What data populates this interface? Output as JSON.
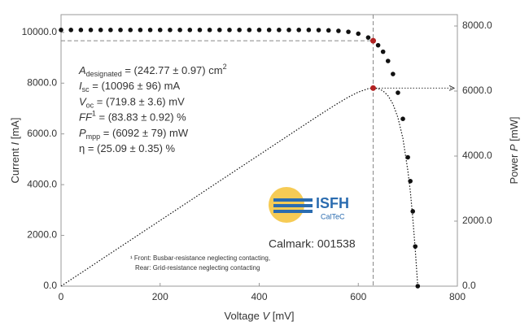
{
  "chart_data": {
    "type": "iv",
    "x": [
      0,
      20,
      40,
      60,
      80,
      100,
      120,
      140,
      160,
      180,
      200,
      220,
      240,
      260,
      280,
      300,
      320,
      340,
      360,
      380,
      400,
      420,
      440,
      460,
      480,
      500,
      520,
      540,
      560,
      580,
      600,
      620,
      630,
      640,
      650,
      660,
      670,
      680,
      690,
      700,
      705,
      710,
      715,
      720
    ],
    "series": [
      {
        "color": "#111111",
        "values": [
          10096,
          10096,
          10096,
          10096,
          10096,
          10096,
          10096,
          10096,
          10096,
          10096,
          10096,
          10096,
          10096,
          10096,
          10096,
          10096,
          10096,
          10096,
          10096,
          10096,
          10096,
          10096,
          10096,
          10096,
          10096,
          10096,
          10090,
          10080,
          10060,
          10023,
          9949,
          9797,
          9670,
          9493,
          9238,
          8874,
          8360,
          7623,
          6593,
          5078,
          4140,
          2948,
          1565,
          0
        ]
      },
      {
        "color": "#111111",
        "axis": "y2",
        "values": [
          0,
          202,
          404,
          606,
          808,
          1010,
          1212,
          1413,
          1615,
          1817,
          2019,
          2221,
          2423,
          2625,
          2827,
          3029,
          3231,
          3433,
          3635,
          3836,
          4038,
          4240,
          4442,
          4644,
          4846,
          5048,
          5247,
          5443,
          5634,
          5813,
          5969,
          6074,
          6092,
          6076,
          6005,
          5857,
          5601,
          5184,
          4549,
          3555,
          2919,
          2093,
          1119,
          0
        ]
      }
    ],
    "mpp": {
      "voltage": 630,
      "current": 9670,
      "power": 6092,
      "color": "#b22222"
    },
    "xlim": [
      0,
      800
    ],
    "xticks": [
      0,
      200,
      400,
      600,
      800
    ],
    "ylim": [
      0,
      10700
    ],
    "yticks": [
      {
        "value": 0,
        "label": "0.0"
      },
      {
        "value": 2000,
        "label": "2000.0"
      },
      {
        "value": 4000,
        "label": "4000.0"
      },
      {
        "value": 6000,
        "label": "6000.0"
      },
      {
        "value": 8000,
        "label": "8000.0"
      },
      {
        "value": 10000,
        "label": "10000.0"
      }
    ],
    "y2lim": [
      0,
      8350
    ],
    "y2ticks": [
      {
        "value": 0,
        "label": "0.0"
      },
      {
        "value": 2000,
        "label": "2000.0"
      },
      {
        "value": 4000,
        "label": "4000.0"
      },
      {
        "value": 6000,
        "label": "6000.0"
      },
      {
        "value": 8000,
        "label": "8000.0"
      }
    ],
    "xlabel": [
      "Voltage ",
      "V",
      " [mV]"
    ],
    "ylabel": [
      "Current ",
      "I",
      " [mA]"
    ],
    "y2label": [
      "Power ",
      "P",
      " [mW]"
    ],
    "annotations": [
      [
        {
          "text": "A",
          "kind": "italic"
        },
        {
          "text": "designated",
          "kind": "sub"
        },
        {
          "text": " = (242.77 ± 0.97) cm",
          "kind": "normal"
        },
        {
          "text": "2",
          "kind": "sup"
        }
      ],
      [
        {
          "text": "I",
          "kind": "italic"
        },
        {
          "text": "sc",
          "kind": "sub"
        },
        {
          "text": " = (10096 ± 96) mA",
          "kind": "normal"
        }
      ],
      [
        {
          "text": "V",
          "kind": "italic"
        },
        {
          "text": "oc",
          "kind": "sub"
        },
        {
          "text": " = (719.8 ± 3.6) mV",
          "kind": "normal"
        }
      ],
      [
        {
          "text": "FF",
          "kind": "italic"
        },
        {
          "text": "1",
          "kind": "sup"
        },
        {
          "text": " = (83.83 ± 0.92) %",
          "kind": "normal"
        }
      ],
      [
        {
          "text": "P",
          "kind": "italic"
        },
        {
          "text": "mpp",
          "kind": "sub"
        },
        {
          "text": " = (6092 ± 79) mW",
          "kind": "normal"
        }
      ],
      [
        {
          "text": "η = (25.09 ± 0.35) %",
          "kind": "normal"
        }
      ]
    ],
    "footnote": [
      "¹ Front: Busbar-resistance neglecting contacting,",
      "Rear: Grid-resistance neglecting contacting"
    ],
    "logo": {
      "name": "ISFH",
      "sub": "CalTeC"
    },
    "calmark": "Calmark: 001538"
  }
}
